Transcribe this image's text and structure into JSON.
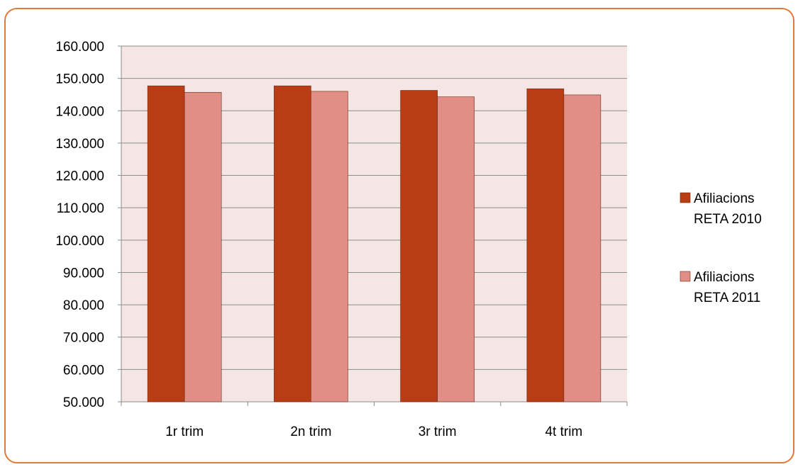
{
  "chart_data": {
    "type": "bar",
    "categories": [
      "1r trim",
      "2n trim",
      "3r trim",
      "4t trim"
    ],
    "series": [
      {
        "name": "Afiliacions RETA 2010",
        "name_lines": [
          "Afiliacions",
          "RETA 2010"
        ],
        "color": "#b83c14",
        "values": [
          147700,
          147700,
          146300,
          146800
        ]
      },
      {
        "name": "Afiliacions RETA 2011",
        "name_lines": [
          "Afiliacions",
          "RETA 2011"
        ],
        "color": "#e08e86",
        "values": [
          145700,
          146000,
          144300,
          144900
        ]
      }
    ],
    "ylim": [
      50000,
      160000
    ],
    "yticks": [
      50000,
      60000,
      70000,
      80000,
      90000,
      100000,
      110000,
      120000,
      130000,
      140000,
      150000,
      160000
    ],
    "ytick_labels": [
      "50.000",
      "60.000",
      "70.000",
      "80.000",
      "90.000",
      "100.000",
      "110.000",
      "120.000",
      "130.000",
      "140.000",
      "150.000",
      "160.000"
    ],
    "grid": true,
    "plot_background": "#f5e6e5",
    "legend_position": "right",
    "title": "",
    "xlabel": "",
    "ylabel": ""
  },
  "colors": {
    "frame_border": "#e07a3a"
  }
}
